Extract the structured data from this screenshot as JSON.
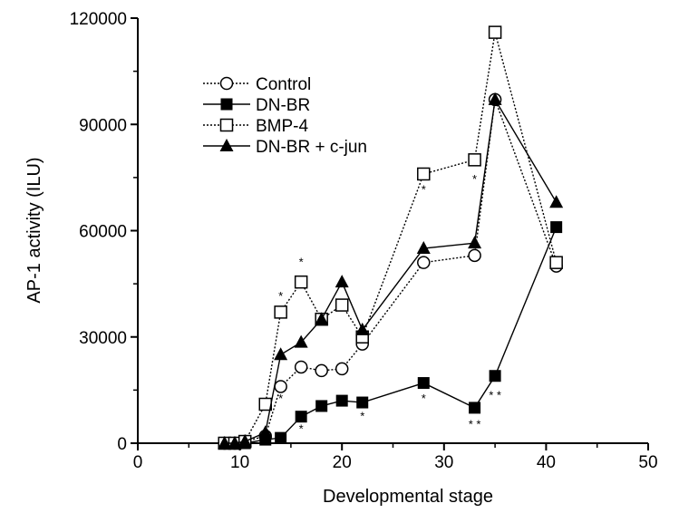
{
  "chart_data": {
    "type": "line",
    "title": "",
    "xlabel": "Developmental stage",
    "ylabel": "AP-1 activity (ILU)",
    "xlim": [
      0,
      50
    ],
    "ylim": [
      0,
      120000
    ],
    "xticks": [
      0,
      10,
      20,
      30,
      40,
      50
    ],
    "yticks": [
      0,
      30000,
      60000,
      90000,
      120000
    ],
    "xtick_labels": [
      "0",
      "10",
      "20",
      "30",
      "40",
      "50"
    ],
    "ytick_labels": [
      "0",
      "30000",
      "60000",
      "90000",
      "120000"
    ],
    "grid": false,
    "legend_position": "upper-left",
    "series": [
      {
        "name": "Control",
        "marker": "open-circle",
        "line": "dotted",
        "points": [
          [
            8.5,
            0
          ],
          [
            9.5,
            0
          ],
          [
            10.5,
            500
          ],
          [
            12.5,
            2000
          ],
          [
            14,
            16000
          ],
          [
            16,
            21500
          ],
          [
            18,
            20500
          ],
          [
            20,
            21000
          ],
          [
            22,
            28000
          ],
          [
            28,
            51000
          ],
          [
            33,
            53000
          ],
          [
            35,
            97000
          ],
          [
            41,
            50000
          ]
        ]
      },
      {
        "name": "DN-BR",
        "marker": "filled-square",
        "line": "solid",
        "points": [
          [
            8.5,
            0
          ],
          [
            9.5,
            0
          ],
          [
            10.5,
            0
          ],
          [
            12.5,
            1000
          ],
          [
            14,
            1500
          ],
          [
            16,
            7500
          ],
          [
            18,
            10500
          ],
          [
            20,
            12000
          ],
          [
            22,
            11500
          ],
          [
            28,
            17000
          ],
          [
            33,
            10000
          ],
          [
            35,
            19000
          ],
          [
            41,
            61000
          ]
        ]
      },
      {
        "name": "BMP-4",
        "marker": "open-square",
        "line": "dotted",
        "points": [
          [
            8.5,
            0
          ],
          [
            9.5,
            0
          ],
          [
            10.5,
            500
          ],
          [
            12.5,
            11000
          ],
          [
            14,
            37000
          ],
          [
            16,
            45500
          ],
          [
            18,
            35000
          ],
          [
            20,
            39000
          ],
          [
            22,
            30000
          ],
          [
            28,
            76000
          ],
          [
            33,
            80000
          ],
          [
            35,
            116000
          ],
          [
            41,
            51000
          ]
        ]
      },
      {
        "name": "DN-BR + c-jun",
        "marker": "filled-triangle",
        "line": "solid",
        "points": [
          [
            8.5,
            0
          ],
          [
            9.5,
            0
          ],
          [
            10.5,
            500
          ],
          [
            12.5,
            3000
          ],
          [
            14,
            25000
          ],
          [
            16,
            28500
          ],
          [
            18,
            35000
          ],
          [
            20,
            45500
          ],
          [
            22,
            32000
          ],
          [
            28,
            55000
          ],
          [
            33,
            56500
          ],
          [
            35,
            97000
          ],
          [
            41,
            68000
          ]
        ]
      }
    ],
    "annotations": [
      {
        "text": "*",
        "x": 14,
        "y": 42000
      },
      {
        "text": "*",
        "x": 16,
        "y": 51500
      },
      {
        "text": "*",
        "x": 14,
        "y": 13000
      },
      {
        "text": "*",
        "x": 16,
        "y": 4500
      },
      {
        "text": "*",
        "x": 22,
        "y": 8000
      },
      {
        "text": "*",
        "x": 28,
        "y": 72000
      },
      {
        "text": "*",
        "x": 28,
        "y": 13000
      },
      {
        "text": "*",
        "x": 33,
        "y": 75000
      },
      {
        "text": "* *",
        "x": 33,
        "y": 5800
      },
      {
        "text": "* *",
        "x": 35,
        "y": 14000
      }
    ]
  }
}
